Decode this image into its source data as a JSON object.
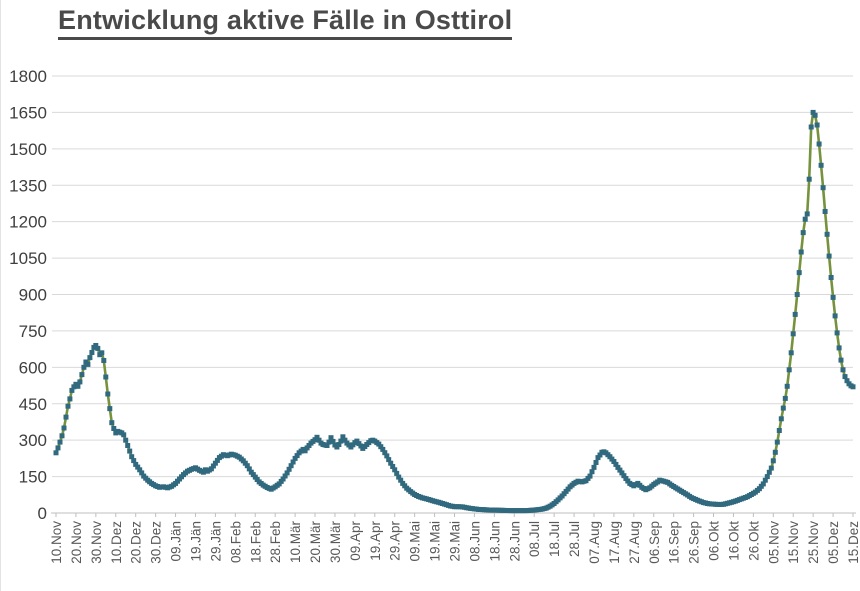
{
  "title": {
    "text": "Entwicklung aktive Fälle in Osttirol"
  },
  "chart_data": {
    "type": "line",
    "title": "Entwicklung aktive Fälle in Osttirol",
    "xlabel": "",
    "ylabel": "",
    "ylim": [
      0,
      1800
    ],
    "ytick_step": 150,
    "grid": "horizontal",
    "legend": "none",
    "x_total_days": 400,
    "x_tick_interval_days": 10,
    "x_tick_labels": [
      "10.Nov",
      "20.Nov",
      "30.Nov",
      "10.Dez",
      "20.Dez",
      "30.Dez",
      "09.Jän",
      "19.Jän",
      "29.Jän",
      "08.Feb",
      "18.Feb",
      "28.Feb",
      "10.Mär",
      "20.Mär",
      "30.Mär",
      "09.Apr",
      "19.Apr",
      "29.Apr",
      "09.Mai",
      "19.Mai",
      "29.Mai",
      "08.Jun",
      "18.Jun",
      "28.Jun",
      "08.Jul",
      "18.Jul",
      "28.Jul",
      "07.Aug",
      "17.Aug",
      "27.Aug",
      "06.Sep",
      "16.Sep",
      "26.Sep",
      "06.Okt",
      "16.Okt",
      "26.Okt",
      "05.Nov",
      "15.Nov",
      "25.Nov",
      "05.Dez",
      "15.Dez"
    ],
    "series": [
      {
        "name": "aktive Fälle",
        "anchors_day_value": [
          [
            0,
            248
          ],
          [
            1,
            268
          ],
          [
            2,
            292
          ],
          [
            3,
            318
          ],
          [
            4,
            350
          ],
          [
            5,
            395
          ],
          [
            6,
            440
          ],
          [
            7,
            470
          ],
          [
            8,
            505
          ],
          [
            9,
            520
          ],
          [
            10,
            530
          ],
          [
            11,
            522
          ],
          [
            12,
            540
          ],
          [
            14,
            600
          ],
          [
            15,
            622
          ],
          [
            16,
            612
          ],
          [
            17,
            640
          ],
          [
            19,
            682
          ],
          [
            20,
            690
          ],
          [
            21,
            678
          ],
          [
            22,
            652
          ],
          [
            23,
            660
          ],
          [
            24,
            628
          ],
          [
            25,
            560
          ],
          [
            26,
            490
          ],
          [
            27,
            430
          ],
          [
            28,
            372
          ],
          [
            29,
            348
          ],
          [
            30,
            330
          ],
          [
            31,
            336
          ],
          [
            33,
            330
          ],
          [
            34,
            322
          ],
          [
            35,
            300
          ],
          [
            36,
            278
          ],
          [
            37,
            255
          ],
          [
            38,
            232
          ],
          [
            40,
            200
          ],
          [
            42,
            178
          ],
          [
            44,
            152
          ],
          [
            46,
            135
          ],
          [
            48,
            122
          ],
          [
            50,
            112
          ],
          [
            52,
            106
          ],
          [
            54,
            108
          ],
          [
            56,
            104
          ],
          [
            58,
            110
          ],
          [
            60,
            122
          ],
          [
            62,
            140
          ],
          [
            64,
            158
          ],
          [
            66,
            172
          ],
          [
            68,
            180
          ],
          [
            70,
            186
          ],
          [
            72,
            176
          ],
          [
            74,
            168
          ],
          [
            75,
            178
          ],
          [
            76,
            172
          ],
          [
            78,
            182
          ],
          [
            80,
            205
          ],
          [
            82,
            228
          ],
          [
            84,
            240
          ],
          [
            86,
            236
          ],
          [
            88,
            242
          ],
          [
            90,
            238
          ],
          [
            92,
            230
          ],
          [
            94,
            215
          ],
          [
            96,
            195
          ],
          [
            98,
            168
          ],
          [
            100,
            148
          ],
          [
            102,
            128
          ],
          [
            104,
            115
          ],
          [
            106,
            105
          ],
          [
            108,
            98
          ],
          [
            110,
            108
          ],
          [
            112,
            120
          ],
          [
            114,
            140
          ],
          [
            116,
            165
          ],
          [
            118,
            195
          ],
          [
            120,
            225
          ],
          [
            122,
            248
          ],
          [
            124,
            262
          ],
          [
            125,
            256
          ],
          [
            126,
            268
          ],
          [
            128,
            288
          ],
          [
            130,
            302
          ],
          [
            131,
            312
          ],
          [
            132,
            300
          ],
          [
            133,
            288
          ],
          [
            134,
            282
          ],
          [
            136,
            278
          ],
          [
            137,
            292
          ],
          [
            138,
            310
          ],
          [
            139,
            295
          ],
          [
            140,
            280
          ],
          [
            141,
            272
          ],
          [
            142,
            282
          ],
          [
            143,
            296
          ],
          [
            144,
            314
          ],
          [
            145,
            300
          ],
          [
            146,
            288
          ],
          [
            148,
            272
          ],
          [
            150,
            290
          ],
          [
            151,
            296
          ],
          [
            152,
            286
          ],
          [
            154,
            266
          ],
          [
            156,
            282
          ],
          [
            158,
            298
          ],
          [
            159,
            300
          ],
          [
            160,
            296
          ],
          [
            162,
            284
          ],
          [
            164,
            262
          ],
          [
            166,
            235
          ],
          [
            168,
            205
          ],
          [
            170,
            178
          ],
          [
            172,
            148
          ],
          [
            174,
            122
          ],
          [
            176,
            102
          ],
          [
            178,
            88
          ],
          [
            180,
            76
          ],
          [
            182,
            68
          ],
          [
            184,
            62
          ],
          [
            186,
            58
          ],
          [
            188,
            53
          ],
          [
            190,
            48
          ],
          [
            192,
            44
          ],
          [
            194,
            39
          ],
          [
            196,
            34
          ],
          [
            198,
            29
          ],
          [
            200,
            26
          ],
          [
            202,
            26
          ],
          [
            204,
            25
          ],
          [
            206,
            22
          ],
          [
            208,
            19
          ],
          [
            210,
            17
          ],
          [
            212,
            15
          ],
          [
            214,
            14
          ],
          [
            216,
            13
          ],
          [
            218,
            12
          ],
          [
            220,
            12
          ],
          [
            224,
            11
          ],
          [
            228,
            10
          ],
          [
            232,
            10
          ],
          [
            236,
            10
          ],
          [
            238,
            11
          ],
          [
            240,
            12
          ],
          [
            242,
            14
          ],
          [
            244,
            16
          ],
          [
            246,
            20
          ],
          [
            248,
            28
          ],
          [
            250,
            39
          ],
          [
            252,
            54
          ],
          [
            254,
            70
          ],
          [
            256,
            89
          ],
          [
            258,
            108
          ],
          [
            260,
            122
          ],
          [
            262,
            131
          ],
          [
            264,
            128
          ],
          [
            266,
            133
          ],
          [
            268,
            152
          ],
          [
            270,
            188
          ],
          [
            272,
            228
          ],
          [
            274,
            250
          ],
          [
            275,
            252
          ],
          [
            276,
            248
          ],
          [
            278,
            232
          ],
          [
            280,
            212
          ],
          [
            282,
            188
          ],
          [
            284,
            165
          ],
          [
            286,
            142
          ],
          [
            288,
            122
          ],
          [
            290,
            112
          ],
          [
            292,
            122
          ],
          [
            294,
            106
          ],
          [
            296,
            96
          ],
          [
            298,
            104
          ],
          [
            300,
            118
          ],
          [
            302,
            128
          ],
          [
            303,
            135
          ],
          [
            305,
            131
          ],
          [
            307,
            126
          ],
          [
            309,
            114
          ],
          [
            311,
            104
          ],
          [
            313,
            94
          ],
          [
            315,
            84
          ],
          [
            317,
            74
          ],
          [
            319,
            63
          ],
          [
            321,
            56
          ],
          [
            323,
            49
          ],
          [
            325,
            43
          ],
          [
            327,
            39
          ],
          [
            329,
            37
          ],
          [
            331,
            36
          ],
          [
            333,
            35
          ],
          [
            335,
            36
          ],
          [
            337,
            40
          ],
          [
            339,
            44
          ],
          [
            341,
            49
          ],
          [
            343,
            55
          ],
          [
            345,
            61
          ],
          [
            347,
            67
          ],
          [
            349,
            76
          ],
          [
            351,
            86
          ],
          [
            353,
            100
          ],
          [
            355,
            120
          ],
          [
            357,
            150
          ],
          [
            359,
            185
          ],
          [
            360,
            215
          ],
          [
            361,
            250
          ],
          [
            362,
            292
          ],
          [
            363,
            340
          ],
          [
            364,
            388
          ],
          [
            365,
            432
          ],
          [
            366,
            472
          ],
          [
            367,
            522
          ],
          [
            368,
            590
          ],
          [
            369,
            660
          ],
          [
            370,
            738
          ],
          [
            371,
            818
          ],
          [
            372,
            900
          ],
          [
            373,
            990
          ],
          [
            374,
            1075
          ],
          [
            375,
            1155
          ],
          [
            376,
            1210
          ],
          [
            377,
            1232
          ],
          [
            378,
            1375
          ],
          [
            379,
            1590
          ],
          [
            380,
            1650
          ],
          [
            381,
            1638
          ],
          [
            382,
            1598
          ],
          [
            383,
            1520
          ],
          [
            384,
            1432
          ],
          [
            385,
            1340
          ],
          [
            386,
            1242
          ],
          [
            387,
            1148
          ],
          [
            388,
            1058
          ],
          [
            389,
            970
          ],
          [
            390,
            888
          ],
          [
            391,
            812
          ],
          [
            392,
            742
          ],
          [
            393,
            680
          ],
          [
            394,
            630
          ],
          [
            395,
            590
          ],
          [
            396,
            562
          ],
          [
            397,
            545
          ],
          [
            398,
            532
          ],
          [
            399,
            524
          ],
          [
            400,
            520
          ]
        ]
      }
    ],
    "styles": {
      "line_color": "#76923C",
      "marker_color": "#31697F",
      "marker_shape": "square",
      "gridline_color": "#D9D9D9",
      "axis_line_color": "#BFBFBF",
      "x_tick_label_color": "#595959",
      "y_tick_label_color": "#3F3F3F",
      "title_color": "#4A4A4A",
      "background": "#FFFFFF"
    }
  }
}
